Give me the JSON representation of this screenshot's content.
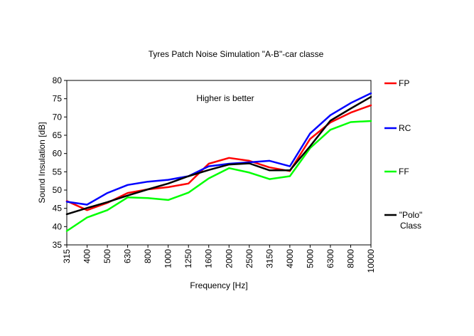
{
  "chart_data": {
    "type": "line",
    "title": "Tyres Patch Noise Simulation \"A-B\"-car classe",
    "xlabel": "Frequency [Hz]",
    "ylabel": "Sound Insulation [dB]",
    "annotation": "Higher is better",
    "ylim": [
      35,
      80
    ],
    "ytick_step": 5,
    "grid": false,
    "legend_position": "right",
    "categories": [
      "315",
      "400",
      "500",
      "630",
      "800",
      "1000",
      "1250",
      "1600",
      "2000",
      "2500",
      "3150",
      "4000",
      "5000",
      "6300",
      "8000",
      "10000"
    ],
    "series": [
      {
        "name": "FP",
        "legend_lines": [
          "FP"
        ],
        "color": "#ff0000",
        "values": [
          47.0,
          44.5,
          46.5,
          49.2,
          50.2,
          50.8,
          51.8,
          57.2,
          58.8,
          58.0,
          56.2,
          55.2,
          64.0,
          68.5,
          71.2,
          73.2
        ]
      },
      {
        "name": "RC",
        "legend_lines": [
          "RC"
        ],
        "color": "#0000ff",
        "values": [
          46.8,
          46.0,
          49.2,
          51.4,
          52.3,
          52.8,
          53.8,
          56.5,
          57.2,
          57.6,
          58.0,
          56.5,
          65.5,
          70.5,
          73.8,
          76.5
        ]
      },
      {
        "name": "FF",
        "legend_lines": [
          "FF"
        ],
        "color": "#00ff00",
        "values": [
          38.8,
          42.5,
          44.5,
          48.0,
          47.8,
          47.3,
          49.3,
          53.2,
          56.0,
          54.8,
          53.0,
          53.8,
          61.5,
          66.5,
          68.6,
          68.9
        ]
      },
      {
        "name": "\"Polo\" Class",
        "legend_lines": [
          "\"Polo\"",
          "Class"
        ],
        "color": "#000000",
        "values": [
          43.4,
          45.1,
          46.7,
          48.5,
          50.2,
          51.8,
          53.8,
          55.5,
          57.0,
          57.3,
          55.4,
          55.4,
          62.0,
          69.0,
          72.3,
          75.5
        ]
      }
    ]
  }
}
